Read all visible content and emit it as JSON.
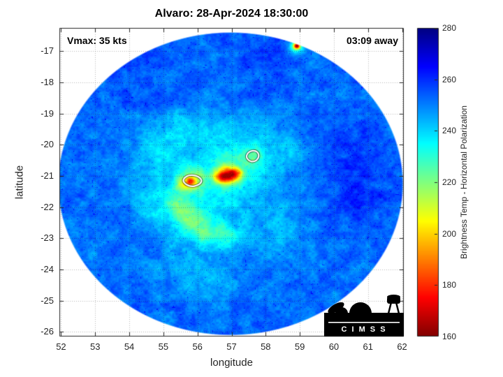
{
  "title": "Alvaro: 28-Apr-2024 18:30:00",
  "annotations": {
    "vmax": "Vmax: 35 kts",
    "time_away": "03:09 away"
  },
  "axes": {
    "xlabel": "longitude",
    "ylabel": "latitude"
  },
  "colorbar": {
    "label": "Brightness Temp - Horizontal Polarization"
  },
  "logo": {
    "text": "C I M S S"
  },
  "chart_data": {
    "type": "heatmap",
    "title": "Alvaro: 28-Apr-2024 18:30:00",
    "subtitle_left": "Vmax: 35 kts",
    "subtitle_right": "03:09 away",
    "xlabel": "longitude",
    "ylabel": "latitude",
    "xlim": [
      51.95,
      62.05
    ],
    "ylim": [
      -26.15,
      -16.25
    ],
    "xticks": [
      52,
      53,
      54,
      55,
      56,
      57,
      58,
      59,
      60,
      61,
      62
    ],
    "yticks": [
      -17,
      -18,
      -19,
      -20,
      -21,
      -22,
      -23,
      -24,
      -25,
      -26
    ],
    "grid": true,
    "colormap": "jet_reversed",
    "units": "K",
    "colorbar": {
      "min": 160,
      "max": 280,
      "ticks": [
        280,
        260,
        240,
        220,
        200,
        180,
        160
      ],
      "label": "Brightness Temp - Horizontal Polarization",
      "position": "right"
    },
    "storm": {
      "name": "Alvaro",
      "datetime": "28-Apr-2024 18:30:00",
      "vmax_kts": 35,
      "time_to_overpass": "03:09"
    },
    "swath": {
      "center_lon": 56.97,
      "center_lat": -21.25,
      "radius_lon_deg": 5.05,
      "radius_lat_deg": 4.85,
      "background_temp_K": 252
    },
    "features": [
      {
        "name": "eyewall-core",
        "lon": 56.95,
        "lat": -20.97,
        "sigma": 0.18,
        "dT": -52
      },
      {
        "name": "core-west",
        "lon": 56.68,
        "lat": -21.03,
        "sigma": 0.15,
        "dT": -38
      },
      {
        "name": "core-east",
        "lon": 57.15,
        "lat": -20.92,
        "sigma": 0.12,
        "dT": -26
      },
      {
        "name": "core-halo",
        "lon": 56.9,
        "lat": -21.0,
        "sigma": 0.45,
        "dT": -13
      },
      {
        "name": "west-cell",
        "lon": 55.85,
        "lat": -21.15,
        "sigma": 0.26,
        "dT": -26
      },
      {
        "name": "west-cell-kernel",
        "lon": 55.8,
        "lat": -21.17,
        "sigma": 0.09,
        "dT": -33
      },
      {
        "name": "west-cell-tail",
        "lon": 55.55,
        "lat": -21.3,
        "sigma": 0.2,
        "dT": -15
      },
      {
        "name": "ne-cell",
        "lon": 57.62,
        "lat": -20.4,
        "sigma": 0.24,
        "dT": -16
      },
      {
        "name": "south-band-1",
        "lon": 55.45,
        "lat": -21.9,
        "sigma": 0.3,
        "dT": -15
      },
      {
        "name": "south-band-2",
        "lon": 55.75,
        "lat": -22.4,
        "sigma": 0.32,
        "dT": -20
      },
      {
        "name": "south-band-3",
        "lon": 56.3,
        "lat": -22.8,
        "sigma": 0.33,
        "dT": -17
      },
      {
        "name": "south-band-4",
        "lon": 56.9,
        "lat": -22.95,
        "sigma": 0.3,
        "dT": -13
      },
      {
        "name": "west-band",
        "lon": 54.65,
        "lat": -22.1,
        "sigma": 0.4,
        "dT": -9
      },
      {
        "name": "central-cyan",
        "lon": 56.2,
        "lat": -21.6,
        "sigma": 1.3,
        "dT": -9
      },
      {
        "name": "central-cyan-2",
        "lon": 57.2,
        "lat": -20.7,
        "sigma": 0.9,
        "dT": -7
      },
      {
        "name": "north-band-1",
        "lon": 54.9,
        "lat": -19.6,
        "sigma": 0.5,
        "dT": -7
      },
      {
        "name": "north-band-2",
        "lon": 56.1,
        "lat": -19.35,
        "sigma": 0.6,
        "dT": -7
      },
      {
        "name": "north-band-3",
        "lon": 57.6,
        "lat": -19.6,
        "sigma": 0.55,
        "dT": -6
      },
      {
        "name": "north-band-4",
        "lon": 58.7,
        "lat": -20.1,
        "sigma": 0.5,
        "dT": -6
      },
      {
        "name": "west-cyan",
        "lon": 55.0,
        "lat": -20.6,
        "sigma": 0.6,
        "dT": -7
      },
      {
        "name": "sw-streak",
        "lon": 55.6,
        "lat": -23.9,
        "sigma": 0.45,
        "dT": -7
      },
      {
        "name": "south-streak",
        "lon": 56.5,
        "lat": -24.4,
        "sigma": 0.5,
        "dT": -6
      },
      {
        "name": "se-light",
        "lon": 58.4,
        "lat": -22.7,
        "sigma": 0.6,
        "dT": -6
      },
      {
        "name": "top-edge-cell",
        "lon": 58.9,
        "lat": -16.85,
        "sigma": 0.13,
        "dT": -40
      },
      {
        "name": "top-edge-dot",
        "lon": 58.92,
        "lat": -16.82,
        "sigma": 0.06,
        "dT": -55
      },
      {
        "name": "east-dark",
        "lon": 60.6,
        "lat": -20.4,
        "sigma": 0.7,
        "dT": 7
      },
      {
        "name": "east-dark-2",
        "lon": 60.9,
        "lat": -21.8,
        "sigma": 0.6,
        "dT": 6
      },
      {
        "name": "nw-dark",
        "lon": 54.2,
        "lat": -17.9,
        "sigma": 0.8,
        "dT": 4
      },
      {
        "name": "north-dark",
        "lon": 57.9,
        "lat": -17.3,
        "sigma": 0.7,
        "dT": 4
      }
    ],
    "contours_white": [
      {
        "name": "convective-cell-contour-west",
        "points": [
          [
            55.62,
            -21.05
          ],
          [
            55.75,
            -20.97
          ],
          [
            55.95,
            -20.98
          ],
          [
            56.1,
            -21.07
          ],
          [
            56.13,
            -21.2
          ],
          [
            56.0,
            -21.31
          ],
          [
            55.82,
            -21.34
          ],
          [
            55.66,
            -21.28
          ],
          [
            55.57,
            -21.16
          ]
        ]
      },
      {
        "name": "convective-cell-contour-northeast",
        "points": [
          [
            57.45,
            -20.3
          ],
          [
            57.54,
            -20.2
          ],
          [
            57.7,
            -20.18
          ],
          [
            57.8,
            -20.28
          ],
          [
            57.79,
            -20.44
          ],
          [
            57.66,
            -20.55
          ],
          [
            57.51,
            -20.52
          ],
          [
            57.43,
            -20.4
          ]
        ]
      }
    ]
  }
}
